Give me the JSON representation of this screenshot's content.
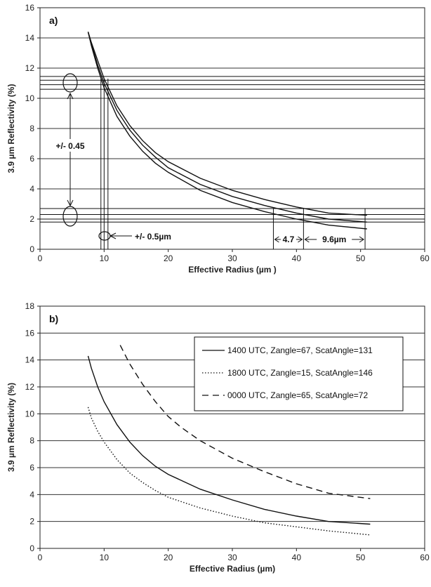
{
  "chart_data": [
    {
      "type": "line",
      "panel_label": "a)",
      "xlabel": "Effective Radius (µm )",
      "ylabel": "3.9 µm Reflectivity (%)",
      "xlim": [
        0,
        60
      ],
      "ylim": [
        0,
        16
      ],
      "x_ticks": [
        "0",
        "10",
        "20",
        "30",
        "40",
        "50",
        "60"
      ],
      "y_ticks": [
        "0",
        "2",
        "4",
        "6",
        "8",
        "10",
        "12",
        "14",
        "16"
      ],
      "grid": "horizontal",
      "series": [
        {
          "x": [
            7.5,
            8,
            9,
            10,
            12,
            14,
            16,
            18,
            20,
            25,
            30,
            35,
            40,
            45,
            51
          ],
          "y": [
            14.4,
            13.6,
            12.2,
            11.0,
            9.2,
            7.9,
            6.9,
            6.1,
            5.4,
            4.3,
            3.5,
            2.9,
            2.4,
            2.0,
            1.8
          ]
        },
        {
          "x": [
            7.5,
            8,
            9,
            10,
            12,
            14,
            16,
            18,
            20,
            25,
            30,
            35,
            40,
            45,
            51
          ],
          "y": [
            14.4,
            13.7,
            12.5,
            11.3,
            9.5,
            8.2,
            7.2,
            6.4,
            5.8,
            4.7,
            3.9,
            3.3,
            2.8,
            2.4,
            2.25
          ]
        },
        {
          "x": [
            7.5,
            8,
            9,
            10,
            12,
            14,
            16,
            18,
            20,
            25,
            30,
            35,
            40,
            45,
            51
          ],
          "y": [
            14.4,
            13.5,
            12.0,
            10.7,
            8.8,
            7.5,
            6.5,
            5.7,
            5.1,
            3.9,
            3.1,
            2.5,
            2.0,
            1.6,
            1.35
          ]
        }
      ],
      "reference_lines": {
        "horizontal": [
          1.8,
          2.0,
          2.3,
          2.7,
          10.6,
          10.9,
          11.2,
          11.45
        ],
        "vertical": [
          9.5,
          10.0,
          10.6,
          36.4,
          41.1,
          50.7
        ]
      },
      "annotations": [
        "+/- 0.45",
        "+/- 0.5µm",
        "4.7",
        "9.6µm"
      ]
    },
    {
      "type": "line",
      "panel_label": "b)",
      "xlabel": "Effective Radius (µm)",
      "ylabel": "3.9 µm Reflectivity (%)",
      "xlim": [
        0,
        60
      ],
      "ylim": [
        0,
        18
      ],
      "x_ticks": [
        "0",
        "10",
        "20",
        "30",
        "40",
        "50",
        "60"
      ],
      "y_ticks": [
        "0",
        "2",
        "4",
        "6",
        "8",
        "10",
        "12",
        "14",
        "16",
        "18"
      ],
      "grid": "horizontal",
      "legend_position": "top-right",
      "series": [
        {
          "name": "1400 UTC, Zangle=67, ScatAngle=131",
          "style": "solid",
          "x": [
            7.5,
            8,
            9,
            10,
            12,
            14,
            16,
            18,
            20,
            25,
            30,
            35,
            40,
            45,
            51.5
          ],
          "y": [
            14.3,
            13.4,
            12.0,
            10.9,
            9.2,
            7.9,
            6.9,
            6.1,
            5.5,
            4.4,
            3.6,
            2.9,
            2.4,
            2.0,
            1.8
          ]
        },
        {
          "name": "1800 UTC, Zangle=15, ScatAngle=146",
          "style": "dotted",
          "x": [
            7.5,
            8,
            9,
            10,
            12,
            14,
            16,
            18,
            20,
            25,
            30,
            35,
            40,
            45,
            51.5
          ],
          "y": [
            10.5,
            9.7,
            8.7,
            7.9,
            6.6,
            5.6,
            4.9,
            4.3,
            3.8,
            3.0,
            2.4,
            1.9,
            1.6,
            1.3,
            1.0
          ]
        },
        {
          "name": "0000 UTC, Zangle=65, ScatAngle=72",
          "style": "dashed",
          "x": [
            12.5,
            14,
            16,
            18,
            20,
            22,
            25,
            30,
            35,
            40,
            45,
            51.5
          ],
          "y": [
            15.1,
            13.7,
            12.2,
            10.9,
            9.8,
            9.0,
            8.0,
            6.7,
            5.7,
            4.8,
            4.1,
            3.7
          ]
        }
      ]
    }
  ]
}
